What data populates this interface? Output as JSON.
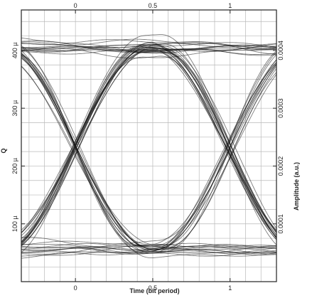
{
  "chart_data": {
    "type": "line",
    "subtype": "eye-diagram",
    "title": "",
    "xlabel": "Time (bit period)",
    "ylabel_left": "Q",
    "ylabel_right": "Amplitude (a.u.)",
    "xlim": [
      -0.35,
      1.3
    ],
    "ylim_left": [
      0,
      470
    ],
    "ylim_right": [
      0,
      0.00047
    ],
    "x_ticks_bottom": [
      {
        "value": 0,
        "label": "0"
      },
      {
        "value": 0.5,
        "label": "0.5"
      },
      {
        "value": 1,
        "label": "1"
      }
    ],
    "x_ticks_top": [
      {
        "value": 0,
        "label": "0"
      },
      {
        "value": 0.5,
        "label": "0.5"
      },
      {
        "value": 1,
        "label": "1"
      }
    ],
    "y_ticks_left": [
      {
        "value": 100,
        "label": "100 µ"
      },
      {
        "value": 200,
        "label": "200 µ"
      },
      {
        "value": 300,
        "label": "300 µ"
      },
      {
        "value": 400,
        "label": "400 µ"
      }
    ],
    "y_ticks_right": [
      {
        "value": 0.0001,
        "label": "0.0001"
      },
      {
        "value": 0.0002,
        "label": "0.0002"
      },
      {
        "value": 0.0003,
        "label": "0.0003"
      },
      {
        "value": 0.0004,
        "label": "0.0004"
      }
    ],
    "grid": true,
    "eye": {
      "high_level": 405,
      "low_level": 55,
      "crossing_level": 228,
      "crossing_times": [
        0,
        1
      ],
      "eye_center_time": 0.5,
      "trace_count": 60
    }
  }
}
